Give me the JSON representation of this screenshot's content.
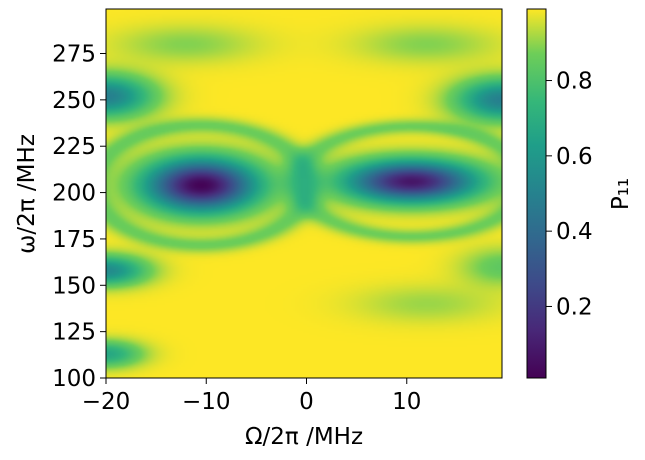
{
  "chart_data": {
    "type": "heatmap",
    "title": "",
    "xlabel": "Ω/2π /MHz",
    "ylabel": "ω/2π /MHz",
    "colorbar_label": "P₁₁",
    "colormap": "viridis",
    "xlim": [
      -20,
      19.5
    ],
    "ylim": [
      100,
      299
    ],
    "x_ticks": [
      -20,
      -10,
      0,
      10
    ],
    "x_tick_labels": [
      "−20",
      "−10",
      "0",
      "10"
    ],
    "y_ticks": [
      100,
      125,
      150,
      175,
      200,
      225,
      250,
      275
    ],
    "y_tick_labels": [
      "100",
      "125",
      "150",
      "175",
      "200",
      "225",
      "250",
      "275"
    ],
    "color_range": [
      0.01,
      0.99
    ],
    "colorbar_ticks": [
      0.2,
      0.4,
      0.6,
      0.8
    ],
    "colorbar_tick_labels": [
      "0.2",
      "0.4",
      "0.6",
      "0.8"
    ],
    "features": [
      {
        "kind": "minimum",
        "x": -10.5,
        "y": 204,
        "value": 0.02
      },
      {
        "kind": "minimum",
        "x": 10.5,
        "y": 206,
        "value": 0.08
      },
      {
        "kind": "band",
        "x": -19,
        "y": 252,
        "value": 0.5
      },
      {
        "kind": "band",
        "x": 19,
        "y": 250,
        "value": 0.5
      },
      {
        "kind": "band",
        "x": -19,
        "y": 158,
        "value": 0.55
      },
      {
        "kind": "band",
        "x": -19,
        "y": 113,
        "value": 0.65
      }
    ],
    "grid": false
  }
}
